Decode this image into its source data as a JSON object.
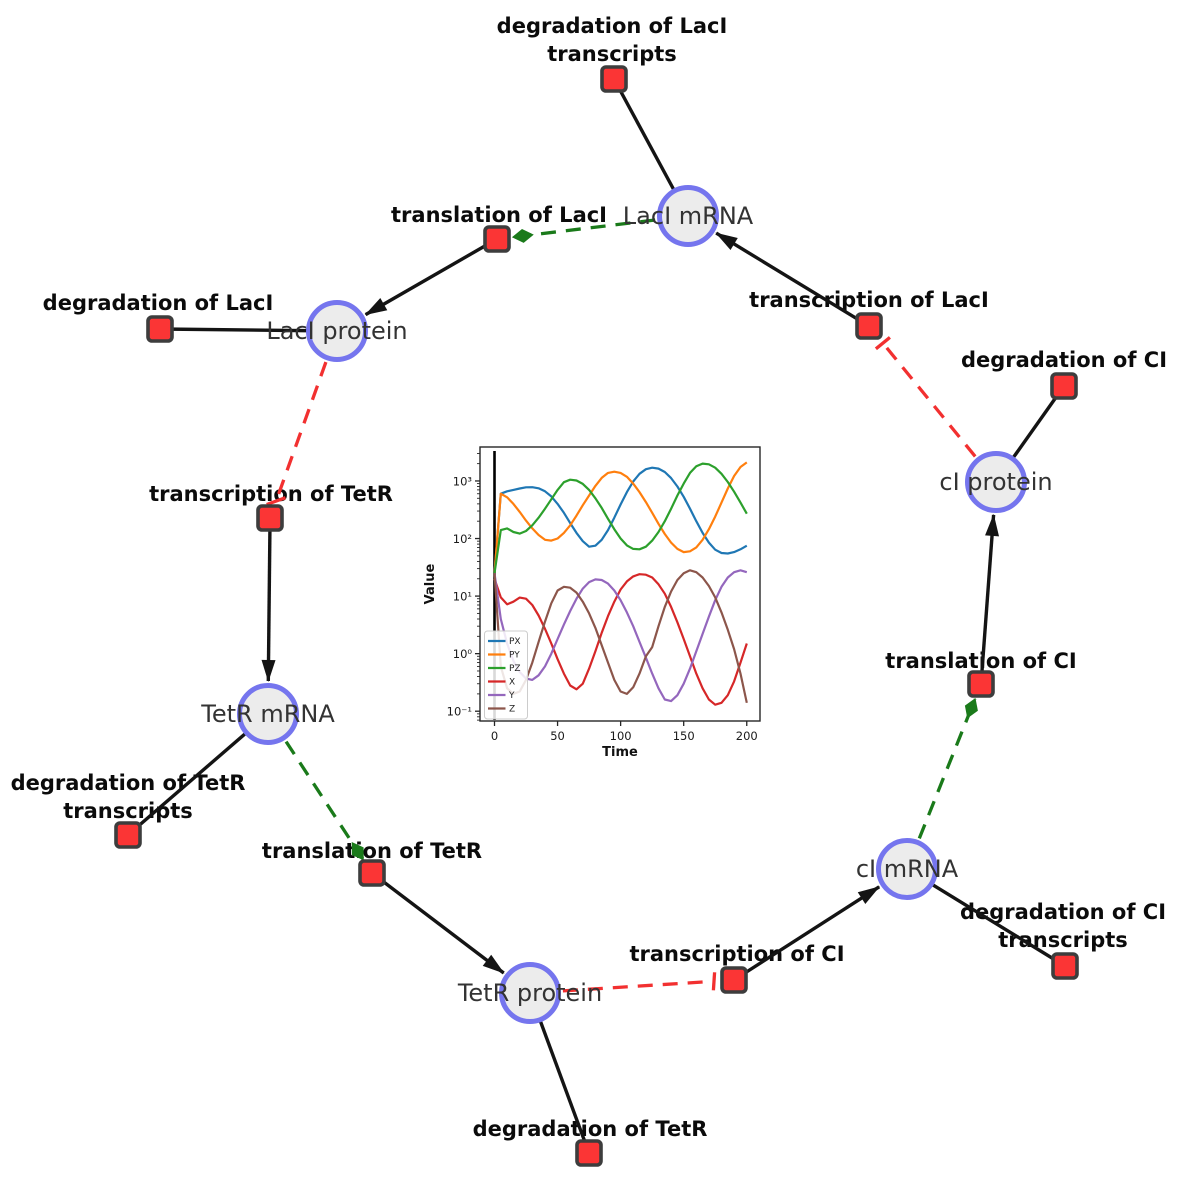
{
  "diagram": {
    "species": {
      "laci_mrna": {
        "label": "LacI mRNA"
      },
      "laci_protein": {
        "label": "LacI protein"
      },
      "tetr_mrna": {
        "label": "TetR mRNA"
      },
      "tetr_protein": {
        "label": "TetR protein"
      },
      "ci_mrna": {
        "label": "cI mRNA"
      },
      "ci_protein": {
        "label": "cI protein"
      }
    },
    "reactions": {
      "degradation_laci_transcripts": {
        "lines": [
          "degradation of LacI",
          "transcripts"
        ]
      },
      "translation_laci": {
        "lines": [
          "translation of LacI"
        ]
      },
      "degradation_laci": {
        "lines": [
          "degradation of LacI"
        ]
      },
      "transcription_laci": {
        "lines": [
          "transcription of LacI"
        ]
      },
      "degradation_ci": {
        "lines": [
          "degradation of CI"
        ]
      },
      "transcription_tetr": {
        "lines": [
          "transcription of TetR"
        ]
      },
      "translation_ci": {
        "lines": [
          "translation of CI"
        ]
      },
      "degradation_tetr_transcripts": {
        "lines": [
          "degradation of TetR",
          "transcripts"
        ]
      },
      "translation_tetr": {
        "lines": [
          "translation of TetR"
        ]
      },
      "transcription_ci": {
        "lines": [
          "transcription of CI"
        ]
      },
      "degradation_ci_transcripts": {
        "lines": [
          "degradation of CI",
          "transcripts"
        ]
      },
      "degradation_tetr": {
        "lines": [
          "degradation of TetR"
        ]
      }
    },
    "colors": {
      "species_fill": "#ececec",
      "species_border": "#7575ee",
      "reaction_fill": "#fb3535",
      "reaction_border": "#3d3d3d",
      "main_edge": "#141414",
      "activation_edge": "#1a7a1a",
      "inhibition_edge": "#f23030"
    }
  },
  "chart_data": {
    "type": "line",
    "title": "",
    "xlabel": "Time",
    "ylabel": "Value",
    "x_ticks": [
      0,
      50,
      100,
      150,
      200
    ],
    "y_scale": "log10",
    "y_tick_exponents": [
      3,
      2,
      1,
      0,
      -1
    ],
    "xlim": [
      -11.5,
      210.5
    ],
    "ylim_log10": [
      -1.17,
      3.59
    ],
    "grid": false,
    "legend_position": "lower-left",
    "vline_at_x": 0,
    "x": [
      0,
      5,
      10,
      15,
      20,
      25,
      30,
      35,
      40,
      45,
      50,
      55,
      60,
      65,
      70,
      75,
      80,
      85,
      90,
      95,
      100,
      105,
      110,
      115,
      120,
      125,
      130,
      135,
      140,
      145,
      150,
      155,
      160,
      165,
      170,
      175,
      180,
      185,
      190,
      195,
      200
    ],
    "series": [
      {
        "name": "PX",
        "color": "#1f77b4",
        "values": [
          25,
          600,
          660,
          700,
          740,
          775,
          780,
          745,
          660,
          540,
          400,
          280,
          185,
          125,
          90,
          72,
          75,
          95,
          140,
          230,
          390,
          640,
          980,
          1330,
          1600,
          1700,
          1640,
          1430,
          1120,
          800,
          530,
          330,
          200,
          125,
          85,
          64,
          56,
          55,
          58,
          65,
          75
        ]
      },
      {
        "name": "PY",
        "color": "#ff7f0e",
        "values": [
          25,
          600,
          520,
          400,
          290,
          205,
          150,
          115,
          95,
          92,
          100,
          125,
          170,
          250,
          380,
          560,
          820,
          1130,
          1380,
          1450,
          1380,
          1180,
          900,
          640,
          430,
          280,
          180,
          120,
          85,
          66,
          58,
          60,
          70,
          95,
          145,
          240,
          420,
          740,
          1220,
          1750,
          2100
        ]
      },
      {
        "name": "PZ",
        "color": "#2ca02c",
        "values": [
          25,
          140,
          150,
          130,
          122,
          135,
          170,
          230,
          330,
          480,
          700,
          950,
          1050,
          1020,
          890,
          700,
          500,
          340,
          220,
          145,
          100,
          76,
          66,
          65,
          72,
          92,
          130,
          200,
          330,
          560,
          900,
          1380,
          1800,
          2000,
          1950,
          1700,
          1330,
          960,
          650,
          420,
          270
        ]
      },
      {
        "name": "X",
        "color": "#d62728",
        "values": [
          20,
          9.5,
          7.2,
          8,
          9.4,
          9,
          7,
          4.6,
          2.7,
          1.5,
          0.8,
          0.45,
          0.28,
          0.24,
          0.3,
          0.55,
          1.1,
          2.3,
          4.5,
          8,
          13,
          18,
          22,
          24,
          23.5,
          21,
          16,
          11,
          6.5,
          3.5,
          1.8,
          0.9,
          0.45,
          0.25,
          0.16,
          0.13,
          0.14,
          0.19,
          0.33,
          0.7,
          1.5
        ]
      },
      {
        "name": "Y",
        "color": "#9467bd",
        "values": [
          25,
          4,
          1.5,
          0.75,
          0.48,
          0.37,
          0.35,
          0.42,
          0.6,
          1,
          1.8,
          3.2,
          5.5,
          9,
          13.5,
          17.5,
          19.5,
          19,
          16.5,
          12.5,
          8.5,
          5.2,
          3,
          1.6,
          0.85,
          0.45,
          0.25,
          0.16,
          0.15,
          0.19,
          0.3,
          0.55,
          1.1,
          2.2,
          4.4,
          8.5,
          14.5,
          21,
          26,
          28,
          26
        ]
      },
      {
        "name": "Z",
        "color": "#8c564b",
        "values": [
          25,
          0.6,
          0.25,
          0.2,
          0.22,
          0.35,
          0.7,
          1.6,
          3.6,
          7.5,
          12.5,
          14.5,
          14,
          11.5,
          8,
          5,
          2.8,
          1.4,
          0.7,
          0.35,
          0.22,
          0.2,
          0.26,
          0.45,
          0.9,
          1.3,
          3,
          6.5,
          12,
          19,
          25,
          28,
          26,
          21,
          15,
          9.5,
          5.2,
          2.6,
          1.2,
          0.45,
          0.14
        ]
      }
    ]
  }
}
